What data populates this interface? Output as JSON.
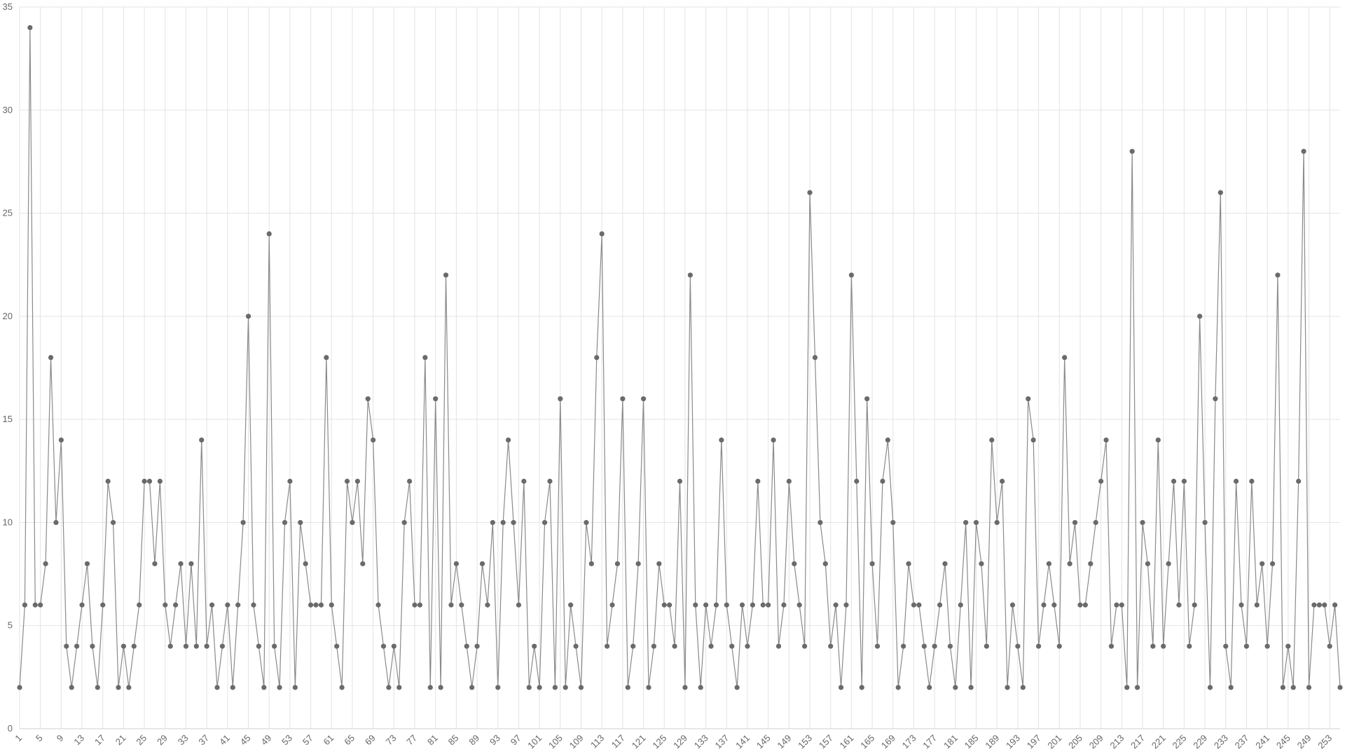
{
  "chart_data": {
    "type": "line",
    "x": [
      1,
      2,
      3,
      4,
      5,
      6,
      7,
      8,
      9,
      10,
      11,
      12,
      13,
      14,
      15,
      16,
      17,
      18,
      19,
      20,
      21,
      22,
      23,
      24,
      25,
      26,
      27,
      28,
      29,
      30,
      31,
      32,
      33,
      34,
      35,
      36,
      37,
      38,
      39,
      40,
      41,
      42,
      43,
      44,
      45,
      46,
      47,
      48,
      49,
      50,
      51,
      52,
      53,
      54,
      55,
      56,
      57,
      58,
      59,
      60,
      61,
      62,
      63,
      64,
      65,
      66,
      67,
      68,
      69,
      70,
      71,
      72,
      73,
      74,
      75,
      76,
      77,
      78,
      79,
      80,
      81,
      82,
      83,
      84,
      85,
      86,
      87,
      88,
      89,
      90,
      91,
      92,
      93,
      94,
      95,
      96,
      97,
      98,
      99,
      100,
      101,
      102,
      103,
      104,
      105,
      106,
      107,
      108,
      109,
      110,
      111,
      112,
      113,
      114,
      115,
      116,
      117,
      118,
      119,
      120,
      121,
      122,
      123,
      124,
      125,
      126,
      127,
      128,
      129,
      130,
      131,
      132,
      133,
      134,
      135,
      136,
      137,
      138,
      139,
      140,
      141,
      142,
      143,
      144,
      145,
      146,
      147,
      148,
      149,
      150,
      151,
      152,
      153,
      154,
      155,
      156,
      157,
      158,
      159,
      160,
      161,
      162,
      163,
      164,
      165,
      166,
      167,
      168,
      169,
      170,
      171,
      172,
      173,
      174,
      175,
      176,
      177,
      178,
      179,
      180,
      181,
      182,
      183,
      184,
      185,
      186,
      187,
      188,
      189,
      190,
      191,
      192,
      193,
      194,
      195,
      196,
      197,
      198,
      199,
      200,
      201,
      202,
      203,
      204,
      205,
      206,
      207,
      208,
      209,
      210,
      211,
      212,
      213,
      214,
      215,
      216,
      217,
      218,
      219,
      220,
      221,
      222,
      223,
      224,
      225,
      226,
      227,
      228,
      229,
      230,
      231,
      232,
      233,
      234,
      235,
      236,
      237,
      238,
      239,
      240,
      241,
      242,
      243,
      244,
      245,
      246,
      247,
      248,
      249,
      250,
      251,
      252,
      253,
      254,
      255
    ],
    "values": [
      2,
      6,
      34,
      6,
      6,
      8,
      18,
      10,
      14,
      4,
      2,
      4,
      6,
      8,
      4,
      2,
      6,
      12,
      10,
      2,
      4,
      2,
      4,
      6,
      12,
      12,
      8,
      12,
      6,
      4,
      6,
      8,
      4,
      8,
      4,
      14,
      4,
      6,
      2,
      4,
      6,
      2,
      6,
      10,
      20,
      6,
      4,
      2,
      24,
      4,
      2,
      10,
      12,
      2,
      10,
      8,
      6,
      6,
      6,
      18,
      6,
      4,
      2,
      12,
      10,
      12,
      8,
      16,
      14,
      6,
      4,
      2,
      4,
      2,
      10,
      12,
      6,
      6,
      18,
      2,
      16,
      2,
      22,
      6,
      8,
      6,
      4,
      2,
      4,
      8,
      6,
      10,
      2,
      10,
      14,
      10,
      6,
      12,
      2,
      4,
      2,
      10,
      12,
      2,
      16,
      2,
      6,
      4,
      2,
      10,
      8,
      18,
      24,
      4,
      6,
      8,
      16,
      2,
      4,
      8,
      16,
      2,
      4,
      8,
      6,
      6,
      4,
      12,
      2,
      22,
      6,
      2,
      6,
      4,
      6,
      14,
      6,
      4,
      2,
      6,
      4,
      6,
      12,
      6,
      6,
      14,
      4,
      6,
      12,
      8,
      6,
      4,
      26,
      18,
      10,
      8,
      4,
      6,
      2,
      6,
      22,
      12,
      2,
      16,
      8,
      4,
      12,
      14,
      10,
      2,
      4,
      8,
      6,
      6,
      4,
      2,
      4,
      6,
      8,
      4,
      2,
      6,
      10,
      2,
      10,
      8,
      4,
      14,
      10,
      12,
      2,
      6,
      4,
      2,
      16,
      14,
      4,
      6,
      8,
      6,
      4,
      18,
      8,
      10,
      6,
      6,
      8,
      10,
      12,
      14,
      4,
      6,
      6,
      2,
      28,
      2,
      10,
      8,
      4,
      14,
      4,
      8,
      12,
      6,
      12,
      4,
      6,
      20,
      10,
      2,
      16,
      26,
      4,
      2,
      12,
      6,
      4,
      12,
      6,
      8,
      4,
      8,
      22,
      2,
      4,
      2,
      12,
      28,
      2,
      6,
      6,
      6,
      4,
      6,
      2
    ],
    "line_color": "#8a8a8a",
    "point_color": "#6a6a6a",
    "xlim": [
      1,
      255
    ],
    "xticks": [
      1,
      5,
      9,
      13,
      17,
      21,
      25,
      29,
      33,
      37,
      41,
      45,
      49,
      53,
      57,
      61,
      65,
      69,
      73,
      77,
      81,
      85,
      89,
      93,
      97,
      101,
      105,
      109,
      113,
      117,
      121,
      125,
      129,
      133,
      137,
      141,
      145,
      149,
      153,
      157,
      161,
      165,
      169,
      173,
      177,
      181,
      185,
      189,
      193,
      197,
      201,
      205,
      209,
      213,
      217,
      221,
      225,
      229,
      233,
      237,
      241,
      245,
      249,
      253
    ],
    "ylim": [
      0,
      35
    ],
    "yticks": [
      0,
      5,
      10,
      15,
      20,
      25,
      30,
      35
    ],
    "grid": true
  }
}
